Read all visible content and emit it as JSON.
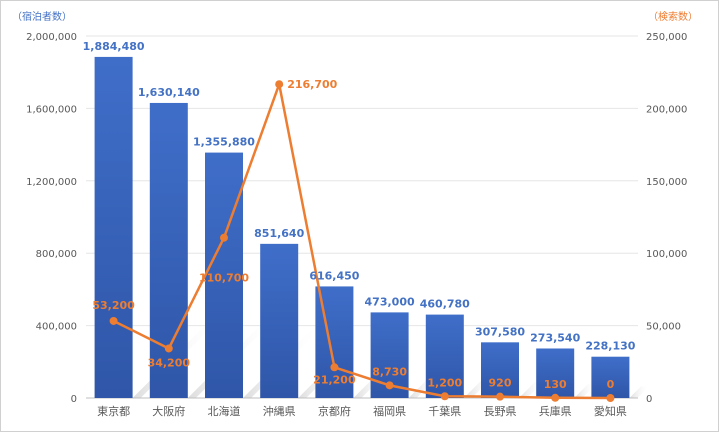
{
  "chart_data": {
    "type": "bar",
    "categories": [
      "東京都",
      "大阪府",
      "北海道",
      "沖縄県",
      "京都府",
      "福岡県",
      "千葉県",
      "長野県",
      "兵庫県",
      "愛知県"
    ],
    "series": [
      {
        "type": "bar",
        "axis": "left",
        "values": [
          1884480,
          1630140,
          1355880,
          851640,
          616450,
          473000,
          460780,
          307580,
          273540,
          228130
        ],
        "labels": [
          "1,884,480",
          "1,630,140",
          "1,355,880",
          "851,640",
          "616,450",
          "473,000",
          "460,780",
          "307,580",
          "273,540",
          "228,130"
        ],
        "color": "#4472c4"
      },
      {
        "type": "line",
        "axis": "right",
        "values": [
          53200,
          34200,
          110700,
          216700,
          21200,
          8730,
          1200,
          920,
          130,
          0
        ],
        "labels": [
          "53,200",
          "34,200",
          "110,700",
          "216,700",
          "21,200",
          "8,730",
          "1,200",
          "920",
          "130",
          "0"
        ],
        "color": "#ed7d31"
      }
    ],
    "y_left_label": "（宿泊者数）",
    "y_right_label": "（検索数）",
    "y_left_lim": [
      0,
      2000000
    ],
    "y_right_lim": [
      0,
      250000
    ],
    "y_left_ticks": [
      0,
      400000,
      800000,
      1200000,
      1600000,
      2000000
    ],
    "y_left_tick_labels": [
      "0",
      "400,000",
      "800,000",
      "1,200,000",
      "1,600,000",
      "2,000,000"
    ],
    "y_right_ticks": [
      0,
      50000,
      100000,
      150000,
      200000,
      250000
    ],
    "y_right_tick_labels": [
      "0",
      "50,000",
      "100,000",
      "150,000",
      "200,000",
      "250,000"
    ],
    "grid": true,
    "legend": "none"
  }
}
